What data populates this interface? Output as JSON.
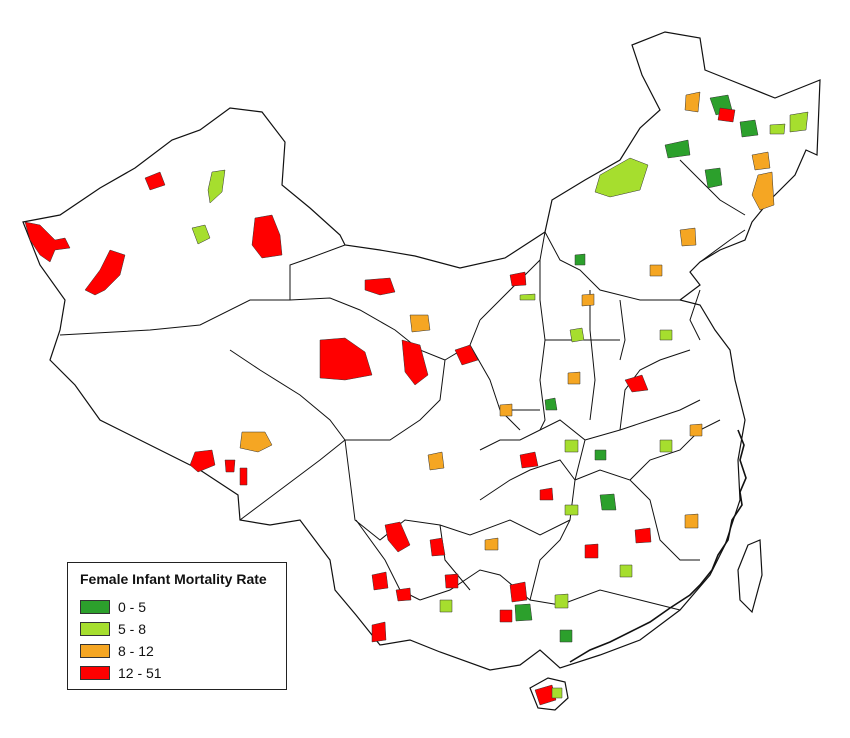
{
  "legend": {
    "title": "Female Infant Mortality Rate",
    "classes": [
      {
        "label": "0 - 5",
        "color": "#2ca02c"
      },
      {
        "label": "5 - 8",
        "color": "#a6de2e"
      },
      {
        "label": "8 - 12",
        "color": "#f5a623"
      },
      {
        "label": "12 - 51",
        "color": "#ff0000"
      }
    ]
  },
  "colors": {
    "boundary": "#111111",
    "background": "#ffffff"
  }
}
